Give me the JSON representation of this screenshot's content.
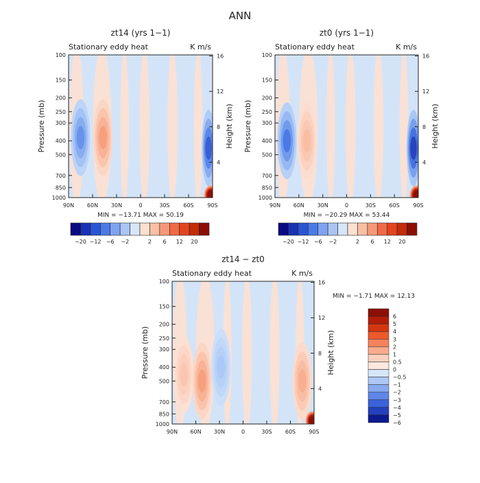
{
  "figure_title": "ANN",
  "chart_data": [
    {
      "type": "heatmap",
      "title": "zt14 (yrs 1−1)",
      "subtitle_left": "Stationary eddy heat",
      "subtitle_right": "K m/s",
      "xlabel": "",
      "ylabel": "Pressure (mb)",
      "ylabel_right": "Height (km)",
      "x_ticks": [
        "90N",
        "60N",
        "30N",
        "0",
        "30S",
        "60S",
        "90S"
      ],
      "y_ticks": [
        "100",
        "150",
        "200",
        "250",
        "300",
        "400",
        "500",
        "700",
        "850",
        "1000"
      ],
      "y_right_ticks": [
        "16",
        "12",
        "8",
        "4"
      ],
      "xlim": [
        "90N",
        "90S"
      ],
      "ylim": [
        1000,
        100
      ],
      "min": -13.71,
      "max": 50.19,
      "stats_text": "MIN = −13.71   MAX =  50.19",
      "colorbar_labels": [
        "−20",
        "−12",
        "−6",
        "−2",
        "2",
        "6",
        "12",
        "20"
      ],
      "features": [
        {
          "kind": "neg",
          "lat": 75,
          "p": 380,
          "value": -8
        },
        {
          "kind": "pos",
          "lat": 47,
          "p": 380,
          "value": 5
        },
        {
          "kind": "neg",
          "lat": -85,
          "p": 450,
          "value": -12
        },
        {
          "kind": "pos",
          "lat": -88,
          "p": 960,
          "value": 20
        }
      ]
    },
    {
      "type": "heatmap",
      "title": "zt0 (yrs 1−1)",
      "subtitle_left": "Stationary eddy heat",
      "subtitle_right": "K m/s",
      "xlabel": "",
      "ylabel": "Pressure (mb)",
      "ylabel_right": "Height (km)",
      "x_ticks": [
        "90N",
        "60N",
        "30N",
        "0",
        "30S",
        "60S",
        "90S"
      ],
      "y_ticks": [
        "100",
        "150",
        "200",
        "250",
        "300",
        "400",
        "500",
        "700",
        "850",
        "1000"
      ],
      "y_right_ticks": [
        "16",
        "12",
        "8",
        "4"
      ],
      "xlim": [
        "90N",
        "90S"
      ],
      "ylim": [
        1000,
        100
      ],
      "min": -20.29,
      "max": 53.44,
      "stats_text": "MIN = −20.29   MAX =  53.44",
      "colorbar_labels": [
        "−20",
        "−12",
        "−6",
        "−2",
        "2",
        "6",
        "12",
        "20"
      ],
      "features": [
        {
          "kind": "neg",
          "lat": 75,
          "p": 400,
          "value": -10
        },
        {
          "kind": "pos",
          "lat": 50,
          "p": 400,
          "value": 3
        },
        {
          "kind": "neg",
          "lat": -84,
          "p": 450,
          "value": -14
        },
        {
          "kind": "pos",
          "lat": -88,
          "p": 960,
          "value": 20
        }
      ]
    },
    {
      "type": "heatmap",
      "title": "zt14 − zt0",
      "subtitle_left": "Stationary eddy heat",
      "subtitle_right": "K m/s",
      "xlabel": "",
      "ylabel": "Pressure (mb)",
      "ylabel_right": "Height (km)",
      "x_ticks": [
        "90N",
        "60N",
        "30N",
        "0",
        "30S",
        "60S",
        "90S"
      ],
      "y_ticks": [
        "100",
        "150",
        "200",
        "250",
        "300",
        "400",
        "500",
        "700",
        "850",
        "1000"
      ],
      "y_right_ticks": [
        "16",
        "12",
        "8",
        "4"
      ],
      "xlim": [
        "90N",
        "90S"
      ],
      "ylim": [
        1000,
        100
      ],
      "min": -1.71,
      "max": 12.13,
      "stats_text": "MIN =   −1.71   MAX =  12.13",
      "colorbar_labels": [
        "6",
        "5",
        "4",
        "3",
        "2",
        "1",
        "0.5",
        "0",
        "−0.5",
        "−1",
        "−2",
        "−3",
        "−4",
        "−5",
        "−6"
      ],
      "features": [
        {
          "kind": "pos",
          "lat": 75,
          "p": 450,
          "value": 0.7
        },
        {
          "kind": "pos",
          "lat": 52,
          "p": 500,
          "value": 1.5
        },
        {
          "kind": "neg",
          "lat": 28,
          "p": 400,
          "value": -1.0
        },
        {
          "kind": "pos",
          "lat": -75,
          "p": 500,
          "value": 1.2
        },
        {
          "kind": "pos",
          "lat": -88,
          "p": 950,
          "value": 6
        }
      ]
    }
  ],
  "colors": {
    "colorbar_top": [
      "#0a0a82",
      "#1a32b4",
      "#2a55d2",
      "#4b7ae6",
      "#7ea3f0",
      "#aac5f5",
      "#d7e6fb",
      "#fde0cf",
      "#fbbfa3",
      "#f7977a",
      "#f06a45",
      "#e3441e",
      "#c22d0a",
      "#8c0f05"
    ],
    "colorbar_side": [
      "#8c0f05",
      "#b21d08",
      "#d4370f",
      "#ec5a2c",
      "#f5835d",
      "#f9ab8c",
      "#fcd1bd",
      "#fde8dd",
      "#d6e6fb",
      "#adc8f6",
      "#86a9f0",
      "#5f86e8",
      "#3b62d9",
      "#2440bc",
      "#0c1a8e"
    ],
    "background_light_blue": "#d3e4f9",
    "background_light_red": "#fbe0d3"
  }
}
